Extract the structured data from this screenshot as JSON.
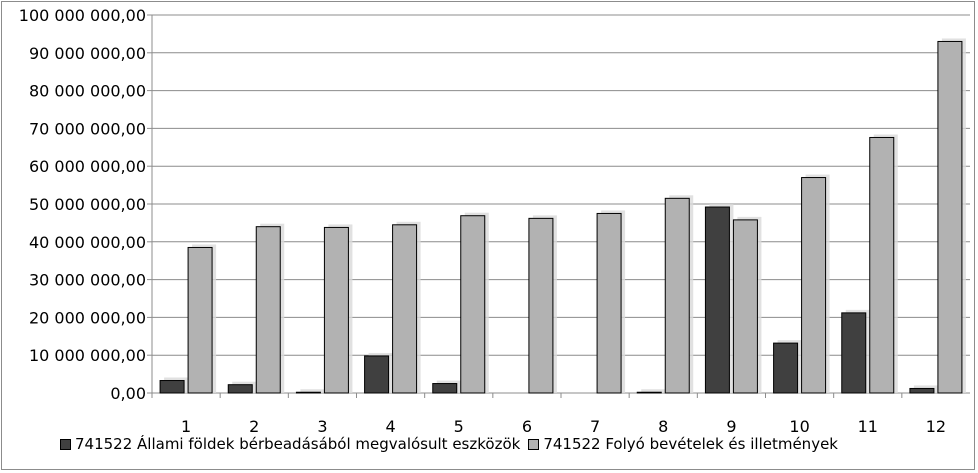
{
  "chart_data": {
    "type": "bar",
    "categories": [
      "1",
      "2",
      "3",
      "4",
      "5",
      "6",
      "7",
      "8",
      "9",
      "10",
      "11",
      "12"
    ],
    "series": [
      {
        "name": "741522 Állami földek bérbeadásából megvalósult eszközök",
        "color": "#404040",
        "values": [
          3300000,
          2200000,
          200000,
          9800000,
          2500000,
          0,
          0,
          200000,
          49200000,
          13200000,
          21200000,
          1200000
        ]
      },
      {
        "name": "741522 Folyó bevételek és illetmények",
        "color": "#b2b2b2",
        "values": [
          38500000,
          44000000,
          43800000,
          44500000,
          46900000,
          46200000,
          47500000,
          51500000,
          45800000,
          57000000,
          67600000,
          93000000
        ]
      }
    ],
    "ylim": [
      0,
      100000000
    ],
    "yticks": [
      "0,00",
      "10 000 000,00",
      "20 000 000,00",
      "30 000 000,00",
      "40 000 000,00",
      "50 000 000,00",
      "60 000 000,00",
      "70 000 000,00",
      "80 000 000,00",
      "90 000 000,00",
      "100 000 000,00"
    ],
    "grid": true,
    "legend_position": "bottom",
    "title": "",
    "xlabel": "",
    "ylabel": ""
  }
}
